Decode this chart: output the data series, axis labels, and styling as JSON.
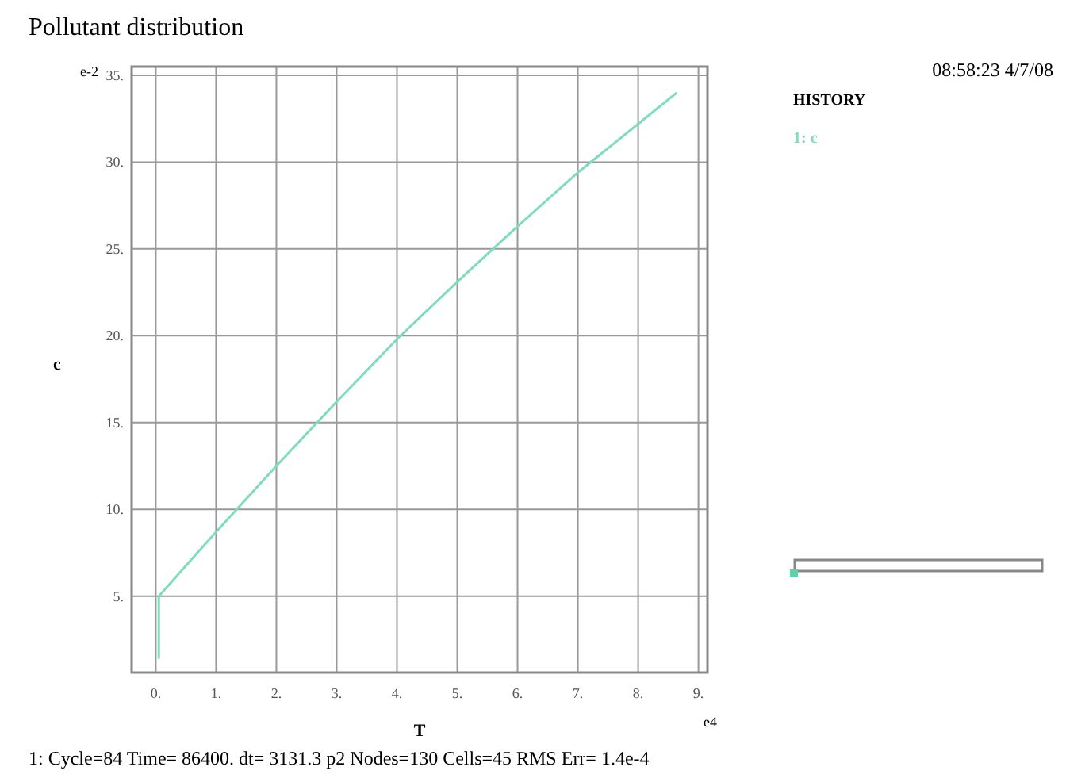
{
  "chart_data": {
    "type": "line",
    "title": "Pollutant distribution",
    "xlabel": "T",
    "ylabel": "c",
    "legend_title": "HISTORY",
    "legend": "right",
    "annotations": [
      "08:58:23 4/7/08",
      "1: Cycle=84  Time= 86400.  dt= 3131.3  p2  Nodes=130 Cells=45 RMS Err= 1.4e-4",
      "e-2",
      "e4"
    ],
    "x": [
      0.05,
      0.05,
      1,
      2,
      3,
      4,
      5,
      6,
      7,
      8,
      8.64
    ],
    "series": [
      {
        "name": "1: c",
        "color": "#7fdcc0",
        "values": [
          1.4,
          5,
          8.7,
          12.5,
          16.2,
          19.8,
          23.1,
          26.3,
          29.4,
          32.2,
          34
        ]
      }
    ],
    "xlim": [
      -0.4,
      9.15
    ],
    "ylim": [
      0.6,
      35.5
    ],
    "xticks": [
      {
        "value": 0,
        "label": "0."
      },
      {
        "value": 1,
        "label": "1."
      },
      {
        "value": 2,
        "label": "2."
      },
      {
        "value": 3,
        "label": "3."
      },
      {
        "value": 4,
        "label": "4."
      },
      {
        "value": 5,
        "label": "5."
      },
      {
        "value": 6,
        "label": "6."
      },
      {
        "value": 7,
        "label": "7."
      },
      {
        "value": 8,
        "label": "8."
      },
      {
        "value": 9,
        "label": "9."
      }
    ],
    "yticks": [
      {
        "value": 5,
        "label": "5."
      },
      {
        "value": 10,
        "label": "10."
      },
      {
        "value": 15,
        "label": "15."
      },
      {
        "value": 20,
        "label": "20."
      },
      {
        "value": 25,
        "label": "25."
      },
      {
        "value": 30,
        "label": "30."
      },
      {
        "value": 35,
        "label": "35."
      }
    ],
    "grid": true
  }
}
